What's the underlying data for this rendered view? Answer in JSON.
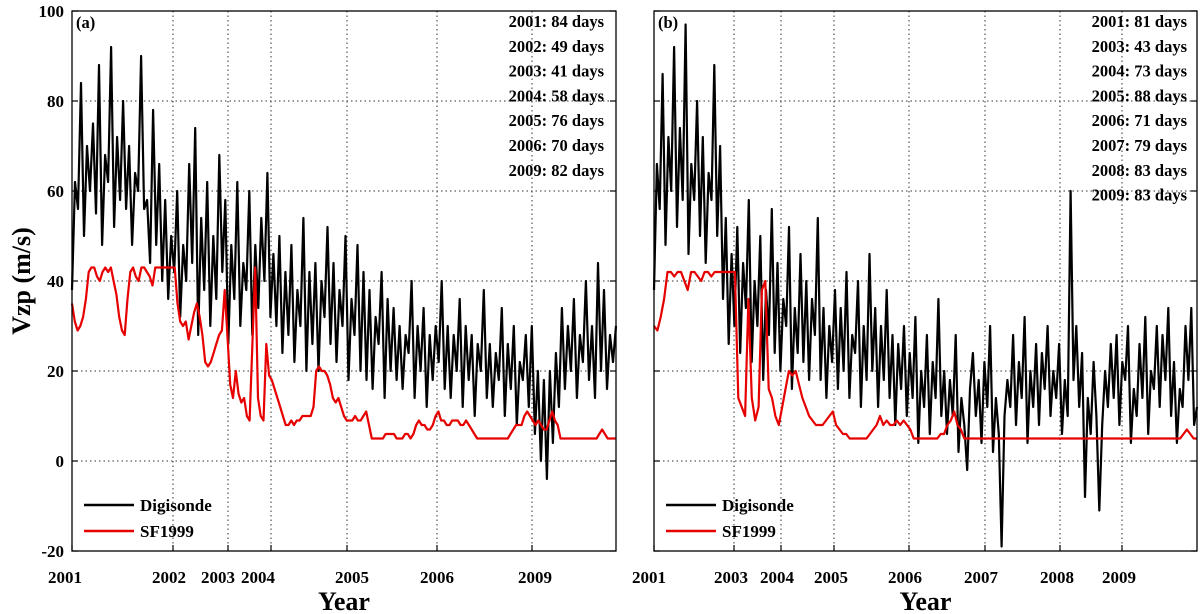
{
  "chart_data": [
    {
      "type": "line",
      "panel_label": "(a)",
      "xlabel": "Year",
      "ylabel": "Vzp (m/s)",
      "ylim": [
        -20,
        100
      ],
      "yticks": [
        -20,
        0,
        20,
        40,
        60,
        80,
        100
      ],
      "x_tick_labels": [
        "2001",
        "2002",
        "2003",
        "2004",
        "2005",
        "2006",
        "2009"
      ],
      "grid": true,
      "legend_position": "bottom-left",
      "annotations": [
        "2001: 84 days",
        "2002: 49 days",
        "2003: 41 days",
        "2004: 58 days",
        "2005: 76 days",
        "2006: 70 days",
        "2009: 82 days"
      ],
      "series": [
        {
          "name": "Digisonde",
          "color": "#000000",
          "y": [
            38,
            62,
            56,
            84,
            50,
            70,
            60,
            75,
            55,
            88,
            48,
            68,
            62,
            92,
            52,
            72,
            58,
            80,
            56,
            70,
            48,
            64,
            60,
            90,
            56,
            58,
            44,
            78,
            48,
            66,
            40,
            58,
            36,
            50,
            42,
            60,
            32,
            48,
            40,
            66,
            44,
            74,
            28,
            54,
            38,
            62,
            30,
            50,
            36,
            68,
            42,
            58,
            26,
            48,
            36,
            62,
            30,
            44,
            38,
            60,
            28,
            48,
            34,
            54,
            40,
            64,
            32,
            46,
            30,
            50,
            24,
            42,
            28,
            48,
            22,
            38,
            30,
            54,
            20,
            42,
            26,
            44,
            20,
            40,
            32,
            52,
            26,
            44,
            22,
            38,
            30,
            50,
            18,
            36,
            28,
            48,
            20,
            42,
            18,
            38,
            16,
            32,
            26,
            42,
            14,
            36,
            20,
            34,
            18,
            30,
            16,
            28,
            24,
            40,
            14,
            30,
            20,
            34,
            12,
            28,
            18,
            30,
            22,
            40,
            16,
            30,
            14,
            28,
            20,
            36,
            12,
            30,
            18,
            28,
            10,
            26,
            20,
            38,
            14,
            26,
            12,
            24,
            18,
            34,
            10,
            26,
            16,
            30,
            8,
            22,
            18,
            28,
            12,
            30,
            6,
            20,
            0,
            18,
            -4,
            20,
            4,
            24,
            12,
            34,
            16,
            30,
            20,
            36,
            14,
            28,
            22,
            40,
            18,
            30,
            14,
            44,
            20,
            38,
            16,
            28,
            22,
            30
          ]
        },
        {
          "name": "SF1999",
          "color": "#e60000",
          "y": [
            35,
            31,
            29,
            30,
            32,
            36,
            42,
            43,
            43,
            41,
            40,
            42,
            43,
            42,
            43,
            40,
            37,
            32,
            29,
            28,
            36,
            42,
            43,
            41,
            40,
            43,
            43,
            42,
            41,
            39,
            43,
            43,
            43,
            43,
            43,
            43,
            43,
            43,
            35,
            31,
            30,
            31,
            27,
            30,
            33,
            35,
            32,
            28,
            22,
            21,
            22,
            24,
            26,
            28,
            29,
            38,
            28,
            17,
            14,
            20,
            15,
            13,
            14,
            10,
            9,
            26,
            43,
            14,
            10,
            9,
            26,
            19,
            18,
            16,
            14,
            12,
            10,
            8,
            8,
            9,
            8,
            9,
            9,
            10,
            10,
            10,
            10,
            12,
            20,
            21,
            20,
            20,
            19,
            17,
            14,
            13,
            14,
            12,
            10,
            9,
            9,
            9,
            10,
            9,
            9,
            10,
            11,
            8,
            5,
            5,
            5,
            5,
            5,
            6,
            6,
            6,
            6,
            5,
            5,
            5,
            6,
            6,
            5,
            6,
            8,
            9,
            8,
            8,
            7,
            7,
            8,
            10,
            11,
            9,
            9,
            8,
            8,
            9,
            9,
            9,
            8,
            8,
            9,
            8,
            7,
            6,
            5,
            5,
            5,
            5,
            5,
            5,
            5,
            5,
            5,
            5,
            5,
            5,
            6,
            7,
            8,
            8,
            8,
            10,
            11,
            10,
            9,
            8,
            9,
            8,
            7,
            7,
            9,
            11,
            9,
            8,
            5,
            5,
            5,
            5,
            5,
            5,
            5,
            5,
            5,
            5,
            5,
            5,
            5,
            5,
            6,
            7,
            6,
            5,
            5,
            5,
            5
          ]
        }
      ]
    },
    {
      "type": "line",
      "panel_label": "(b)",
      "xlabel": "Year",
      "ylabel": "",
      "ylim": [
        -20,
        100
      ],
      "yticks": [
        -20,
        0,
        20,
        40,
        60,
        80,
        100
      ],
      "x_tick_labels": [
        "2001",
        "2003",
        "2004",
        "2005",
        "2006",
        "2007",
        "2008",
        "2009"
      ],
      "grid": true,
      "legend_position": "bottom-left",
      "annotations": [
        "2001: 81 days",
        "2003: 43 days",
        "2004: 73 days",
        "2005: 88 days",
        "2006: 71 days",
        "2007: 79 days",
        "2008: 83 days",
        "2009: 83 days"
      ],
      "series": [
        {
          "name": "Digisonde",
          "color": "#000000",
          "y": [
            38,
            66,
            56,
            86,
            48,
            72,
            60,
            92,
            52,
            74,
            58,
            97,
            46,
            66,
            58,
            80,
            50,
            72,
            44,
            64,
            58,
            88,
            50,
            70,
            36,
            54,
            26,
            46,
            30,
            52,
            24,
            44,
            34,
            58,
            22,
            40,
            30,
            50,
            18,
            38,
            28,
            56,
            24,
            44,
            20,
            36,
            30,
            52,
            16,
            34,
            24,
            46,
            22,
            40,
            18,
            36,
            28,
            54,
            18,
            34,
            14,
            30,
            22,
            38,
            16,
            34,
            20,
            42,
            14,
            28,
            24,
            40,
            12,
            30,
            18,
            46,
            20,
            34,
            12,
            30,
            18,
            38,
            14,
            28,
            8,
            26,
            16,
            30,
            10,
            24,
            14,
            32,
            4,
            20,
            12,
            28,
            6,
            22,
            14,
            36,
            10,
            20,
            6,
            18,
            10,
            28,
            2,
            14,
            8,
            -2,
            16,
            24,
            10,
            18,
            4,
            22,
            12,
            30,
            2,
            14,
            6,
            -19,
            10,
            18,
            12,
            28,
            8,
            22,
            14,
            32,
            4,
            20,
            12,
            26,
            8,
            24,
            16,
            30,
            10,
            20,
            14,
            26,
            6,
            18,
            10,
            60,
            18,
            30,
            12,
            24,
            -8,
            14,
            6,
            22,
            10,
            -11,
            8,
            20,
            12,
            26,
            14,
            28,
            8,
            22,
            18,
            30,
            4,
            16,
            10,
            26,
            14,
            32,
            6,
            20,
            16,
            30,
            12,
            28,
            18,
            34,
            10,
            22,
            4,
            16,
            12,
            30,
            18,
            34,
            8,
            12
          ]
        },
        {
          "name": "SF1999",
          "color": "#e60000",
          "y": [
            30,
            29,
            32,
            36,
            42,
            42,
            41,
            42,
            42,
            40,
            38,
            42,
            42,
            41,
            40,
            42,
            42,
            41,
            42,
            42,
            42,
            42,
            42,
            42,
            42,
            14,
            12,
            10,
            36,
            14,
            9,
            12,
            38,
            40,
            16,
            14,
            10,
            8,
            12,
            16,
            20,
            19,
            20,
            17,
            14,
            12,
            10,
            9,
            8,
            8,
            8,
            9,
            10,
            11,
            8,
            7,
            6,
            6,
            5,
            5,
            5,
            5,
            5,
            5,
            6,
            7,
            8,
            10,
            8,
            9,
            8,
            8,
            9,
            8,
            9,
            8,
            7,
            5,
            5,
            5,
            5,
            5,
            5,
            5,
            5,
            6,
            6,
            8,
            9,
            11,
            8,
            7,
            5,
            5,
            5,
            5,
            5,
            5,
            5,
            5,
            5,
            5,
            5,
            5,
            5,
            5,
            5,
            5,
            5,
            5,
            5,
            5,
            5,
            5,
            5,
            5,
            5,
            5,
            5,
            5,
            5,
            5,
            5,
            5,
            5,
            5,
            5,
            5,
            5,
            5,
            5,
            5,
            5,
            5,
            5,
            5,
            5,
            5,
            5,
            5,
            5,
            5,
            5,
            5,
            5,
            5,
            5,
            5,
            5,
            5,
            5,
            5,
            5,
            5,
            5,
            5,
            5,
            6,
            7,
            6,
            5,
            5
          ]
        }
      ]
    }
  ]
}
